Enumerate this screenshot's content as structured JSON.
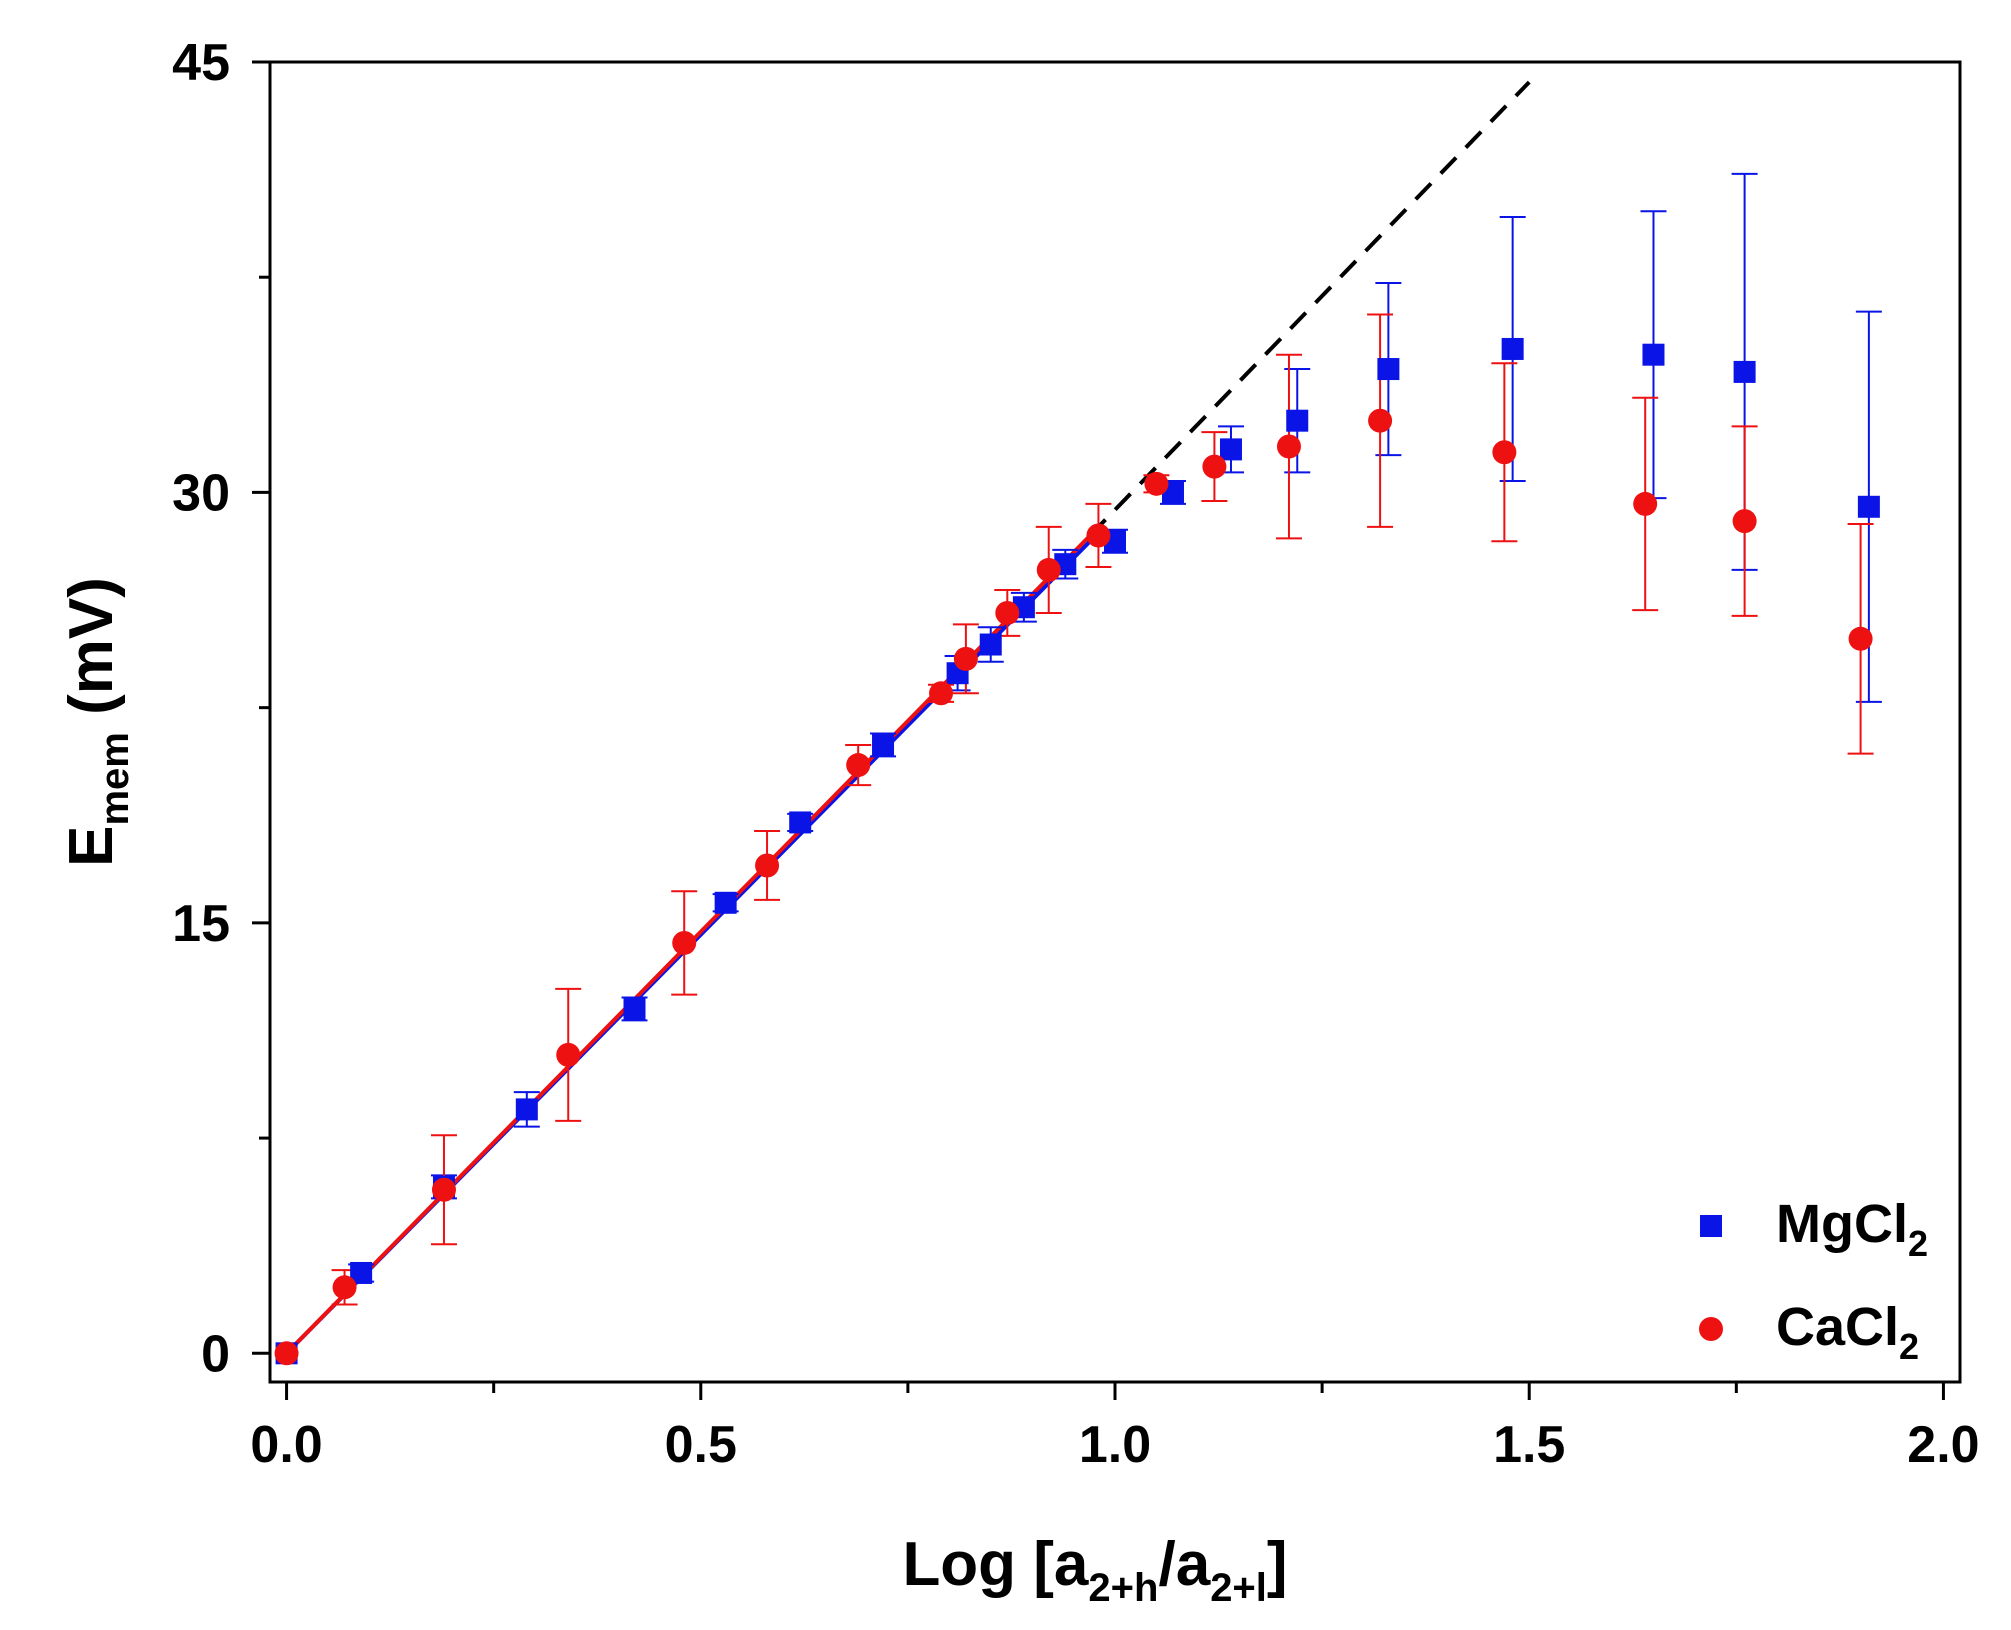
{
  "chart_data": {
    "type": "scatter",
    "title": "",
    "xlabel": {
      "main": "Log [a",
      "sub1": "2+h",
      "mid": "/a",
      "sub2": "2+l",
      "end": "]"
    },
    "ylabel": {
      "main": "E",
      "sub": "mem",
      "unit": " (mV)"
    },
    "xlim": [
      -0.02,
      2.02
    ],
    "ylim": [
      -1,
      45
    ],
    "x_ticks": [
      0.0,
      0.5,
      1.0,
      1.5,
      2.0
    ],
    "x_tick_labels": [
      "0.0",
      "0.5",
      "1.0",
      "1.5",
      "2.0"
    ],
    "y_ticks": [
      0,
      15,
      30,
      45
    ],
    "y_tick_labels": [
      "0",
      "15",
      "30",
      "45"
    ],
    "grid": false,
    "legend_position": "bottom-right",
    "series": [
      {
        "name": "MgCl",
        "name_sub": "2",
        "marker": "square",
        "color": "#0a14e6",
        "x": [
          0.0,
          0.09,
          0.19,
          0.29,
          0.42,
          0.53,
          0.62,
          0.72,
          0.81,
          0.85,
          0.89,
          0.94,
          1.0,
          1.07,
          1.14,
          1.22,
          1.33,
          1.48,
          1.65,
          1.76,
          1.91
        ],
        "y": [
          0.0,
          2.8,
          5.8,
          8.5,
          12.0,
          15.7,
          18.5,
          21.2,
          23.7,
          24.7,
          26.0,
          27.5,
          28.3,
          30.0,
          31.5,
          32.5,
          34.3,
          35.0,
          34.8,
          34.2,
          29.5
        ],
        "err": [
          0.2,
          0.3,
          0.4,
          0.6,
          0.4,
          0.3,
          0.3,
          0.4,
          0.6,
          0.6,
          0.5,
          0.5,
          0.4,
          0.4,
          0.8,
          1.8,
          3.0,
          4.6,
          5.0,
          6.9,
          6.8
        ]
      },
      {
        "name": "CaCl",
        "name_sub": "2",
        "marker": "circle",
        "color": "#ee1111",
        "x": [
          0.0,
          0.07,
          0.19,
          0.34,
          0.48,
          0.58,
          0.69,
          0.79,
          0.82,
          0.87,
          0.92,
          0.98,
          1.05,
          1.12,
          1.21,
          1.32,
          1.47,
          1.64,
          1.76,
          1.9
        ],
        "y": [
          0.0,
          2.3,
          5.7,
          10.4,
          14.3,
          17.0,
          20.5,
          23.0,
          24.2,
          25.8,
          27.3,
          28.5,
          30.3,
          30.9,
          31.6,
          32.5,
          31.4,
          29.6,
          29.0,
          24.9
        ],
        "err": [
          0.2,
          0.6,
          1.9,
          2.3,
          1.8,
          1.2,
          0.7,
          0.3,
          1.2,
          0.8,
          1.5,
          1.1,
          0.3,
          1.2,
          3.2,
          3.7,
          3.1,
          3.7,
          3.3,
          4.0
        ]
      }
    ],
    "fit_lines": [
      {
        "color": "#0a14e6",
        "style": "solid",
        "x": [
          0.0,
          0.97
        ],
        "y": [
          0.0,
          28.3
        ]
      },
      {
        "color": "#ee1111",
        "style": "solid",
        "x": [
          0.0,
          0.97
        ],
        "y": [
          0.0,
          28.5
        ]
      },
      {
        "color": "#000000",
        "style": "dashed",
        "x": [
          0.97,
          1.5
        ],
        "y": [
          28.5,
          44.3
        ]
      }
    ]
  }
}
